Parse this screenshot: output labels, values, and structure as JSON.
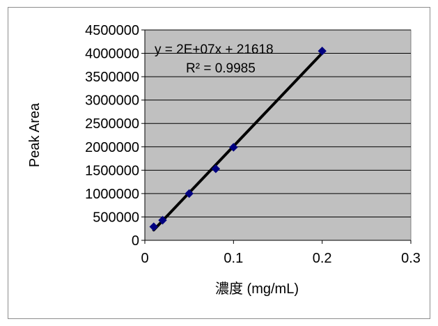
{
  "chart_data": {
    "type": "scatter",
    "title": "",
    "xlabel": "濃度 (mg/mL)",
    "ylabel": "Peak Area",
    "xlim": [
      0,
      0.3
    ],
    "ylim": [
      0,
      4500000
    ],
    "x_ticks": [
      0,
      0.1,
      0.2,
      0.3
    ],
    "y_ticks": [
      0,
      500000,
      1000000,
      1500000,
      2000000,
      2500000,
      3000000,
      3500000,
      4000000,
      4500000
    ],
    "x_tick_labels": [
      "0",
      "0.1",
      "0.2",
      "0.3"
    ],
    "y_tick_labels": [
      "0",
      "500000",
      "1000000",
      "1500000",
      "2000000",
      "2500000",
      "3000000",
      "3500000",
      "4000000",
      "4500000"
    ],
    "grid": "horizontal",
    "plot_background": "#c0c0c0",
    "marker_color": "#000080",
    "trendline_color": "#000000",
    "series": [
      {
        "x": [
          0.01,
          0.02,
          0.05,
          0.08,
          0.1,
          0.2
        ],
        "y": [
          290000,
          430000,
          1000000,
          1530000,
          1990000,
          4050000
        ]
      }
    ],
    "trendline": {
      "type": "linear",
      "x_range": [
        0.01,
        0.2
      ],
      "equation": "y = 2E+07x + 21618",
      "r_squared": "R² = 0.9985"
    }
  }
}
